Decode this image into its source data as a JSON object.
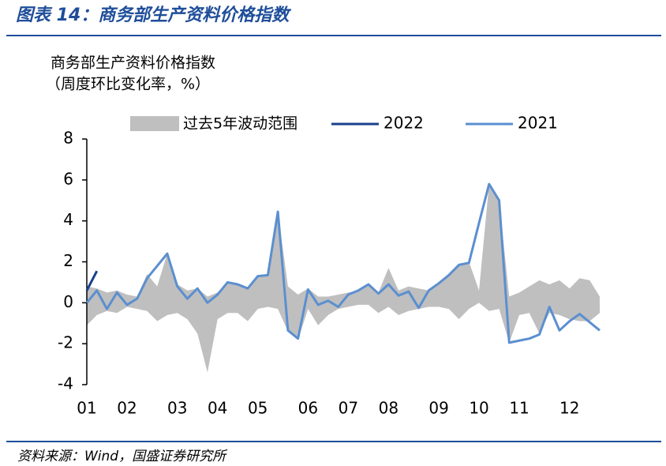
{
  "header": {
    "title": "图表 14：商务部生产资料价格指数"
  },
  "chart_data": {
    "type": "line",
    "title": "商务部生产资料价格指数",
    "subtitle": "（周度环比变化率，%）",
    "categories": [
      "01",
      null,
      null,
      null,
      "02",
      null,
      null,
      null,
      null,
      "03",
      null,
      null,
      null,
      "04",
      null,
      null,
      null,
      "05",
      null,
      null,
      null,
      null,
      "06",
      null,
      null,
      null,
      "07",
      null,
      null,
      null,
      "08",
      null,
      null,
      null,
      null,
      "09",
      null,
      null,
      null,
      "10",
      null,
      null,
      null,
      "11",
      null,
      null,
      null,
      null,
      "12",
      null,
      null,
      null
    ],
    "band": {
      "name": "过去5年波动范围",
      "color": "#bfbfbf",
      "high": [
        0.8,
        0.7,
        0.5,
        0.6,
        0.4,
        0.3,
        1.4,
        0.8,
        2.4,
        0.9,
        0.6,
        0.7,
        0.3,
        0.5,
        1.0,
        0.9,
        0.7,
        1.3,
        1.35,
        4.45,
        0.8,
        0.4,
        0.7,
        0.3,
        0.3,
        0.4,
        0.5,
        0.6,
        0.9,
        0.5,
        1.7,
        0.6,
        0.8,
        0.7,
        0.6,
        1.0,
        1.4,
        1.9,
        2.0,
        0.6,
        5.8,
        5.0,
        0.3,
        0.5,
        0.8,
        1.1,
        0.9,
        1.1,
        0.7,
        1.2,
        1.1,
        0.3
      ],
      "low": [
        -1.1,
        -0.6,
        -0.4,
        -0.5,
        -0.2,
        -0.3,
        -0.4,
        -0.9,
        -0.6,
        -0.5,
        -0.8,
        -1.5,
        -3.4,
        -0.8,
        -0.5,
        -0.5,
        -0.9,
        -0.3,
        -0.2,
        -0.3,
        -1.4,
        -1.8,
        -0.3,
        -1.1,
        -0.6,
        -0.3,
        -0.2,
        -0.1,
        -0.1,
        -0.5,
        -0.2,
        -0.6,
        -0.4,
        -0.3,
        -0.2,
        -0.2,
        -0.3,
        -0.8,
        -0.3,
        0,
        -0.4,
        -0.3,
        -1.95,
        -0.6,
        -0.5,
        -1.5,
        -0.5,
        -0.6,
        -0.8,
        -0.9,
        -0.9,
        -0.5
      ]
    },
    "series": [
      {
        "name": "2022",
        "color": "#1a3f8c",
        "values": [
          0.6,
          1.55,
          null,
          null,
          null,
          null,
          null,
          null,
          null,
          null,
          null,
          null,
          null,
          null,
          null,
          null,
          null,
          null,
          null,
          null,
          null,
          null,
          null,
          null,
          null,
          null,
          null,
          null,
          null,
          null,
          null,
          null,
          null,
          null,
          null,
          null,
          null,
          null,
          null,
          null,
          null,
          null,
          null,
          null,
          null,
          null,
          null,
          null,
          null,
          null,
          null,
          null
        ]
      },
      {
        "name": "2021",
        "color": "#5b8fd0",
        "values": [
          0,
          0.6,
          -0.3,
          0.5,
          -0.1,
          0.2,
          1.2,
          1.8,
          2.4,
          0.8,
          0.2,
          0.7,
          0,
          0.4,
          1.0,
          0.9,
          0.7,
          1.3,
          1.35,
          4.45,
          -1.35,
          -1.75,
          0.65,
          -0.1,
          0.1,
          -0.2,
          0.4,
          0.6,
          0.9,
          0.45,
          0.9,
          0.35,
          0.55,
          -0.25,
          0.6,
          0.95,
          1.35,
          1.85,
          1.95,
          3.9,
          5.8,
          5.0,
          -1.95,
          -1.85,
          -1.75,
          -1.55,
          -0.2,
          -1.35,
          -0.9,
          -0.55,
          -0.95,
          -1.35
        ]
      }
    ],
    "ylim": [
      -4,
      8
    ],
    "yticks": [
      -4,
      -2,
      0,
      2,
      4,
      6,
      8
    ]
  },
  "footer": {
    "source": "资料来源：Wind，国盛证券研究所"
  }
}
